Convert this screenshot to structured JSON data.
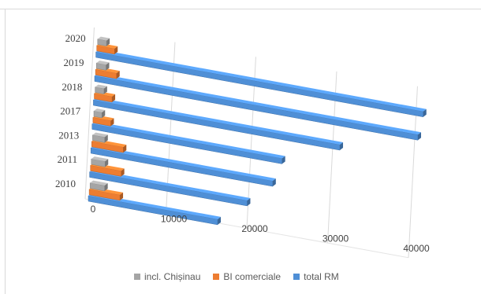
{
  "chart_data": {
    "type": "bar",
    "orientation": "horizontal",
    "style": "3d",
    "categories": [
      "2010",
      "2011",
      "2013",
      "2017",
      "2018",
      "2019",
      "2020"
    ],
    "series": [
      {
        "name": "incl. Chișinau",
        "color": "#a5a5a5",
        "values": [
          1800,
          1700,
          1500,
          1000,
          1100,
          1200,
          1100
        ]
      },
      {
        "name": "BI comerciale",
        "color": "#ed7d31",
        "values": [
          3800,
          3800,
          3900,
          2200,
          2200,
          2600,
          2200
        ]
      },
      {
        "name": "total RM",
        "color": "#4f8fd6",
        "values": [
          16000,
          19500,
          22500,
          23500,
          30500,
          40000,
          40500
        ]
      }
    ],
    "x_ticks": [
      "0",
      "10000",
      "20000",
      "30000",
      "40000"
    ],
    "xlim": [
      0,
      40000
    ],
    "grid": true,
    "legend_position": "bottom"
  }
}
